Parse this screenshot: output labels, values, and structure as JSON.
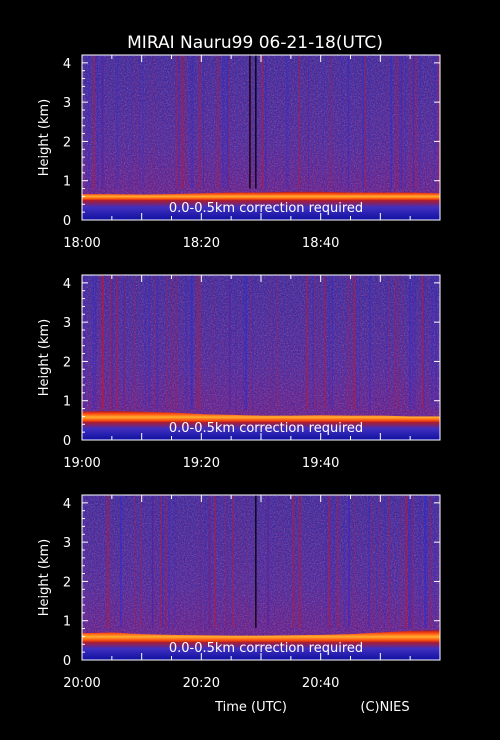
{
  "title": "MIRAI Nauru99 06-21-18(UTC)",
  "footer": {
    "xlabel": "Time (UTC)",
    "credit": "(C)NIES"
  },
  "colors": {
    "background": "#000000",
    "axes": "#ffffff",
    "text": "#ffffff",
    "colormap": [
      "#0a0a78",
      "#2a2ad0",
      "#3c46ff",
      "#7a1a8a",
      "#b01a2a",
      "#e0201a",
      "#ff5a10",
      "#ffa020",
      "#ffe060",
      "#ffffc0"
    ]
  },
  "chart_data": [
    {
      "type": "heatmap",
      "panel": "1",
      "ylabel": "Height (km)",
      "ylim": [
        0,
        4.2
      ],
      "yticks": [
        "0",
        "1",
        "2",
        "3",
        "4"
      ],
      "xlim_minutes": [
        0,
        60
      ],
      "xticks": [
        "18:00",
        "18:20",
        "18:40"
      ],
      "annotation": "0.0-0.5km correction required",
      "layer_top_km": 0.7,
      "layer_base_km": 0.5,
      "layer_top_trend_km": [
        0.66,
        0.66,
        0.65,
        0.66,
        0.68,
        0.7,
        0.7,
        0.72,
        0.72,
        0.7,
        0.7,
        0.7,
        0.68
      ],
      "cloud_gap_minutes": [
        28,
        29
      ]
    },
    {
      "type": "heatmap",
      "panel": "2",
      "ylabel": "Height (km)",
      "ylim": [
        0,
        4.2
      ],
      "yticks": [
        "0",
        "1",
        "2",
        "3",
        "4"
      ],
      "xlim_minutes": [
        0,
        60
      ],
      "xticks": [
        "19:00",
        "19:20",
        "19:40"
      ],
      "annotation": "0.0-0.5km correction required",
      "layer_top_km": 0.68,
      "layer_base_km": 0.45,
      "layer_top_trend_km": [
        0.72,
        0.74,
        0.72,
        0.7,
        0.66,
        0.64,
        0.62,
        0.62,
        0.63,
        0.62,
        0.62,
        0.6,
        0.6
      ],
      "cloud_gap_minutes": []
    },
    {
      "type": "heatmap",
      "panel": "3",
      "ylabel": "Height (km)",
      "ylim": [
        0,
        4.2
      ],
      "yticks": [
        "0",
        "1",
        "2",
        "3",
        "4"
      ],
      "xlim_minutes": [
        0,
        60
      ],
      "xticks": [
        "20:00",
        "20:20",
        "20:40"
      ],
      "annotation": "0.0-0.5km correction required",
      "layer_top_km": 0.72,
      "layer_base_km": 0.45,
      "layer_top_trend_km": [
        0.68,
        0.7,
        0.66,
        0.64,
        0.63,
        0.62,
        0.62,
        0.63,
        0.64,
        0.66,
        0.7,
        0.74,
        0.76
      ],
      "cloud_gap_minutes": [
        29
      ]
    }
  ]
}
